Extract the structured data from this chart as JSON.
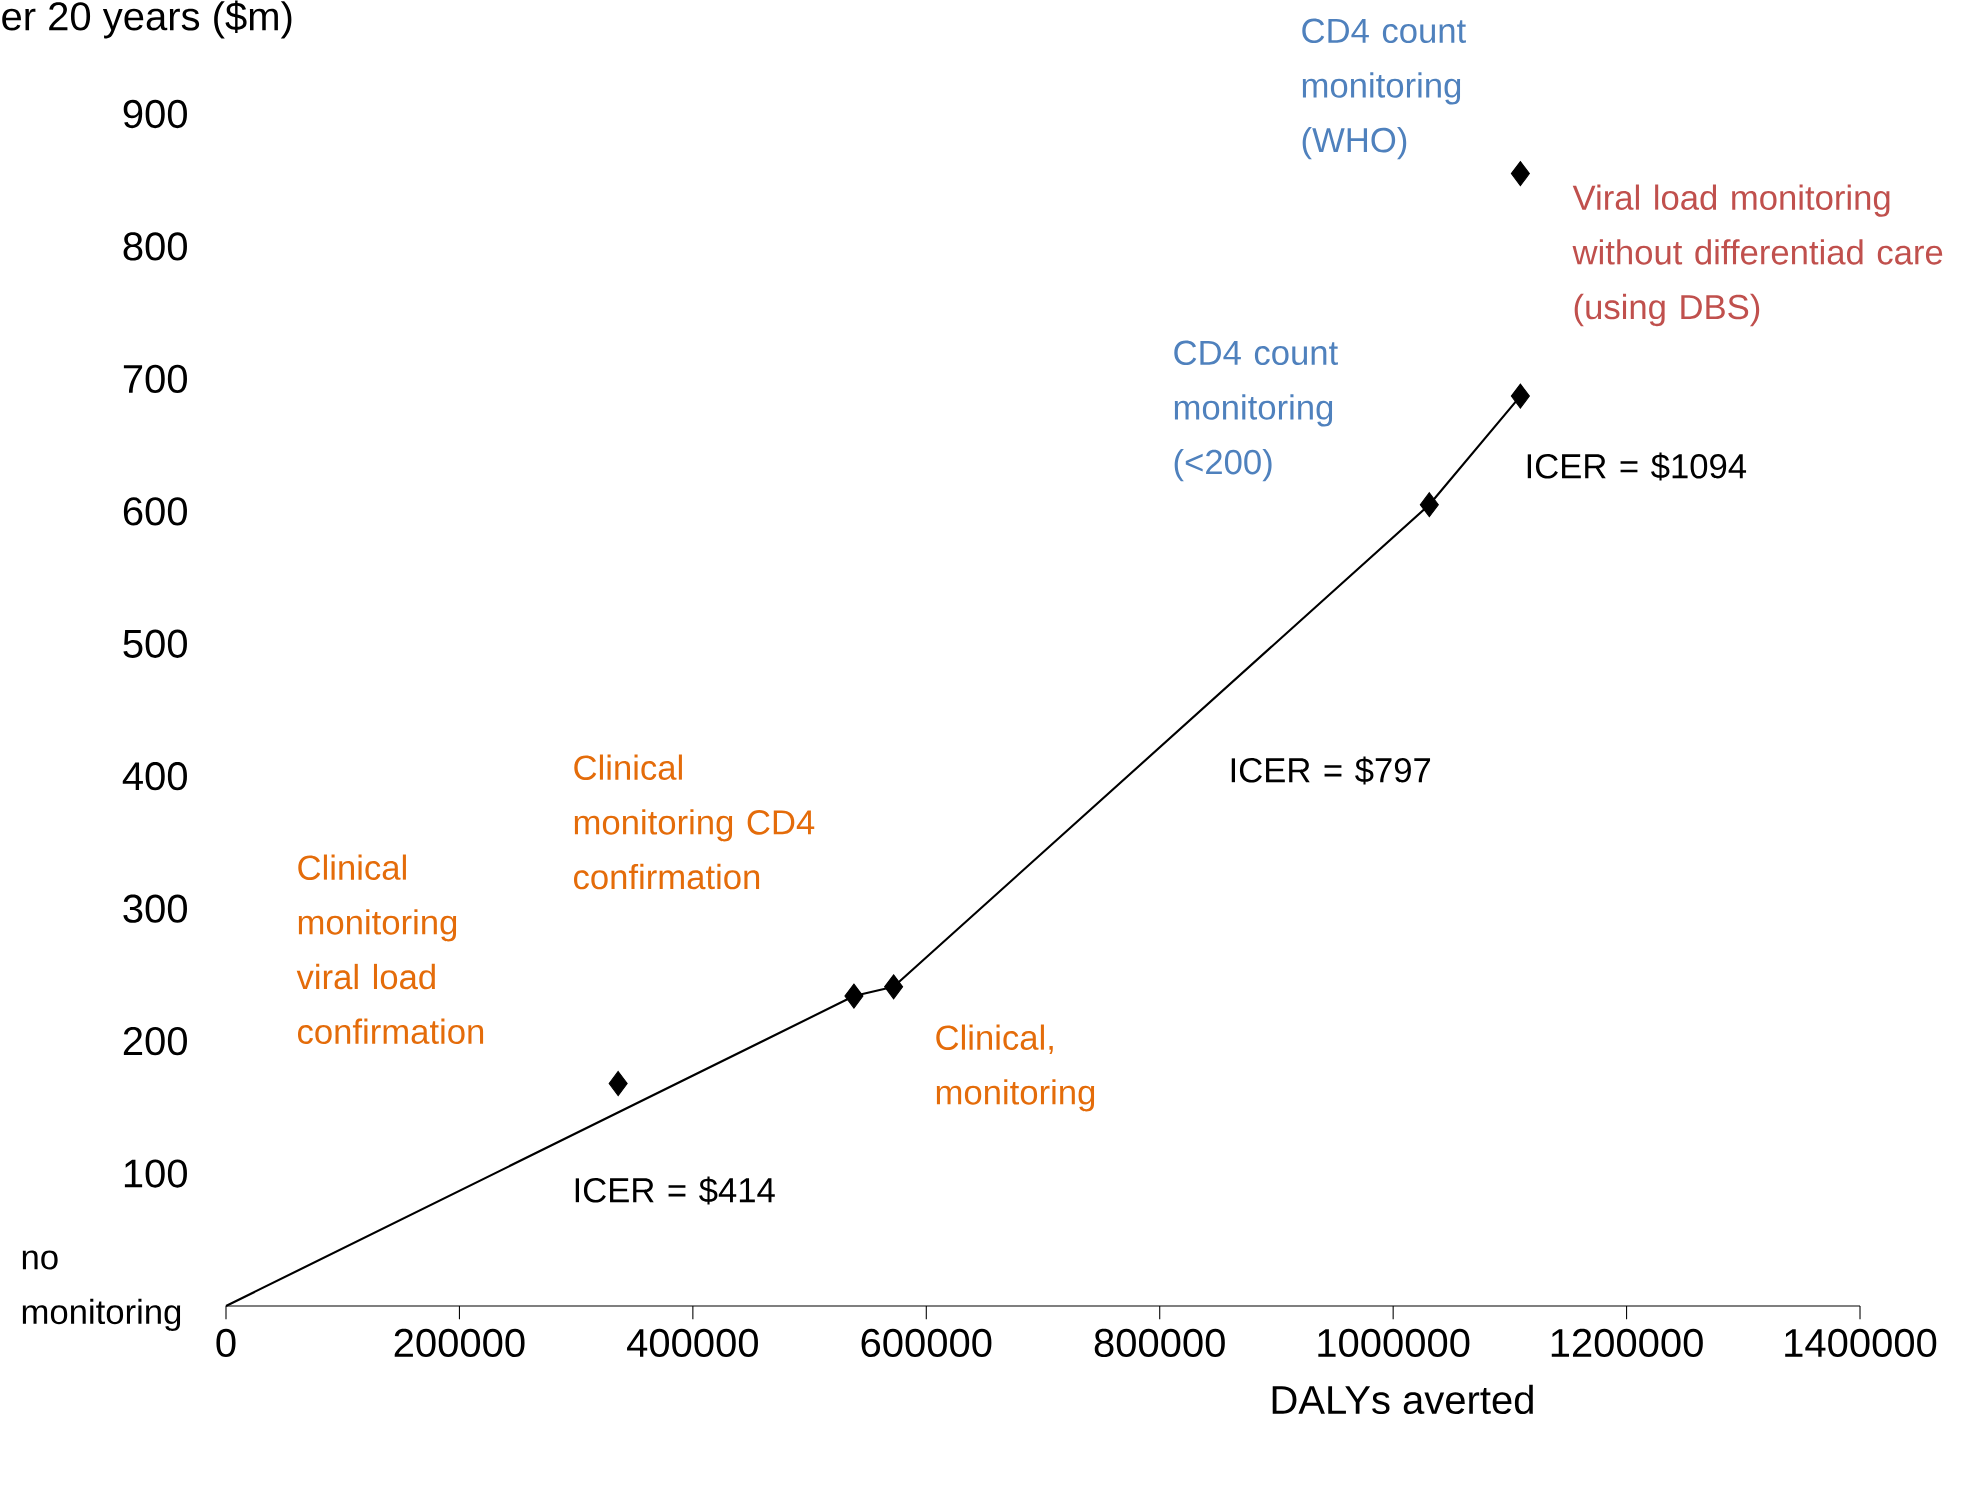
{
  "chart_data": {
    "type": "scatter",
    "ylabel": "er 20 years ($m)",
    "xlabel": "DALYs averted",
    "xlim": [
      0,
      1400000
    ],
    "xticks": [
      0,
      200000,
      400000,
      600000,
      800000,
      1000000,
      1200000,
      1400000
    ],
    "ylim": [
      0,
      900
    ],
    "yticks": [
      100,
      200,
      300,
      400,
      500,
      600,
      700,
      800,
      900
    ],
    "grid": false,
    "series": [
      {
        "type": "line",
        "color": "#000000",
        "marker": "none",
        "line_style": "solid",
        "x": [
          0,
          538000,
          572000,
          1031000,
          1109000
        ],
        "values": [
          0,
          234,
          241,
          605,
          687
        ]
      },
      {
        "color": "#000000",
        "marker": "diamond",
        "x": [
          336000,
          538000,
          572000,
          1031000,
          1109000,
          1109000
        ],
        "values": [
          168,
          234,
          241,
          605,
          687,
          855
        ]
      }
    ],
    "annotations": [
      "no monitoring",
      "Clinical monitoring viral load confirmation",
      "Clinical monitoring CD4 confirmation",
      "Clinical, monitoring",
      "CD4 count monitoring (<200)",
      "CD4 count monitoring (WHO)",
      "Viral load monitoring without differentiad care (using DBS)",
      "ICER = $414",
      "ICER = $797",
      "ICER = $1094"
    ]
  }
}
